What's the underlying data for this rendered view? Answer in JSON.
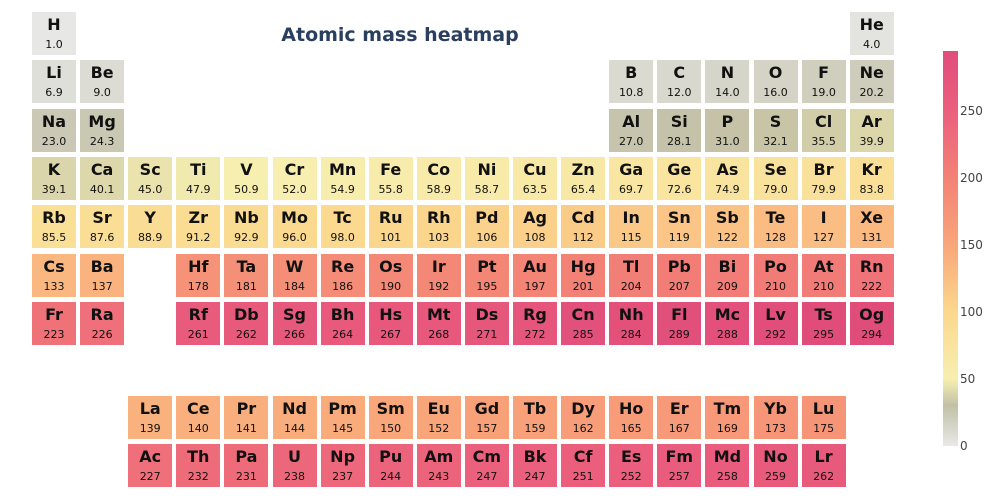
{
  "chart_data": {
    "type": "heatmap",
    "title": "Atomic mass heatmap",
    "colorscale": {
      "min": 0,
      "max": 295,
      "stops": [
        [
          0,
          "#e8e8e8"
        ],
        [
          30,
          "#c2c0a6"
        ],
        [
          50,
          "#f7efb0"
        ],
        [
          100,
          "#fbd88d"
        ],
        [
          150,
          "#f9a67a"
        ],
        [
          200,
          "#f38276"
        ],
        [
          250,
          "#eb5f7d"
        ],
        [
          295,
          "#e04d7b"
        ]
      ],
      "ticks": [
        "0",
        "50",
        "100",
        "150",
        "200",
        "250"
      ]
    },
    "elements": [
      {
        "symbol": "H",
        "mass": "1.0",
        "value": 1.0,
        "row": 1,
        "col": 1
      },
      {
        "symbol": "He",
        "mass": "4.0",
        "value": 4.0,
        "row": 1,
        "col": 18
      },
      {
        "symbol": "Li",
        "mass": "6.9",
        "value": 6.9,
        "row": 2,
        "col": 1
      },
      {
        "symbol": "Be",
        "mass": "9.0",
        "value": 9.0,
        "row": 2,
        "col": 2
      },
      {
        "symbol": "B",
        "mass": "10.8",
        "value": 10.8,
        "row": 2,
        "col": 13
      },
      {
        "symbol": "C",
        "mass": "12.0",
        "value": 12.0,
        "row": 2,
        "col": 14
      },
      {
        "symbol": "N",
        "mass": "14.0",
        "value": 14.0,
        "row": 2,
        "col": 15
      },
      {
        "symbol": "O",
        "mass": "16.0",
        "value": 16.0,
        "row": 2,
        "col": 16
      },
      {
        "symbol": "F",
        "mass": "19.0",
        "value": 19.0,
        "row": 2,
        "col": 17
      },
      {
        "symbol": "Ne",
        "mass": "20.2",
        "value": 20.2,
        "row": 2,
        "col": 18
      },
      {
        "symbol": "Na",
        "mass": "23.0",
        "value": 23.0,
        "row": 3,
        "col": 1
      },
      {
        "symbol": "Mg",
        "mass": "24.3",
        "value": 24.3,
        "row": 3,
        "col": 2
      },
      {
        "symbol": "Al",
        "mass": "27.0",
        "value": 27.0,
        "row": 3,
        "col": 13
      },
      {
        "symbol": "Si",
        "mass": "28.1",
        "value": 28.1,
        "row": 3,
        "col": 14
      },
      {
        "symbol": "P",
        "mass": "31.0",
        "value": 31.0,
        "row": 3,
        "col": 15
      },
      {
        "symbol": "S",
        "mass": "32.1",
        "value": 32.1,
        "row": 3,
        "col": 16
      },
      {
        "symbol": "Cl",
        "mass": "35.5",
        "value": 35.5,
        "row": 3,
        "col": 17
      },
      {
        "symbol": "Ar",
        "mass": "39.9",
        "value": 39.9,
        "row": 3,
        "col": 18
      },
      {
        "symbol": "K",
        "mass": "39.1",
        "value": 39.1,
        "row": 4,
        "col": 1
      },
      {
        "symbol": "Ca",
        "mass": "40.1",
        "value": 40.1,
        "row": 4,
        "col": 2
      },
      {
        "symbol": "Sc",
        "mass": "45.0",
        "value": 45.0,
        "row": 4,
        "col": 3
      },
      {
        "symbol": "Ti",
        "mass": "47.9",
        "value": 47.9,
        "row": 4,
        "col": 4
      },
      {
        "symbol": "V",
        "mass": "50.9",
        "value": 50.9,
        "row": 4,
        "col": 5
      },
      {
        "symbol": "Cr",
        "mass": "52.0",
        "value": 52.0,
        "row": 4,
        "col": 6
      },
      {
        "symbol": "Mn",
        "mass": "54.9",
        "value": 54.9,
        "row": 4,
        "col": 7
      },
      {
        "symbol": "Fe",
        "mass": "55.8",
        "value": 55.8,
        "row": 4,
        "col": 8
      },
      {
        "symbol": "Co",
        "mass": "58.9",
        "value": 58.9,
        "row": 4,
        "col": 9
      },
      {
        "symbol": "Ni",
        "mass": "58.7",
        "value": 58.7,
        "row": 4,
        "col": 10
      },
      {
        "symbol": "Cu",
        "mass": "63.5",
        "value": 63.5,
        "row": 4,
        "col": 11
      },
      {
        "symbol": "Zn",
        "mass": "65.4",
        "value": 65.4,
        "row": 4,
        "col": 12
      },
      {
        "symbol": "Ga",
        "mass": "69.7",
        "value": 69.7,
        "row": 4,
        "col": 13
      },
      {
        "symbol": "Ge",
        "mass": "72.6",
        "value": 72.6,
        "row": 4,
        "col": 14
      },
      {
        "symbol": "As",
        "mass": "74.9",
        "value": 74.9,
        "row": 4,
        "col": 15
      },
      {
        "symbol": "Se",
        "mass": "79.0",
        "value": 79.0,
        "row": 4,
        "col": 16
      },
      {
        "symbol": "Br",
        "mass": "79.9",
        "value": 79.9,
        "row": 4,
        "col": 17
      },
      {
        "symbol": "Kr",
        "mass": "83.8",
        "value": 83.8,
        "row": 4,
        "col": 18
      },
      {
        "symbol": "Rb",
        "mass": "85.5",
        "value": 85.5,
        "row": 5,
        "col": 1
      },
      {
        "symbol": "Sr",
        "mass": "87.6",
        "value": 87.6,
        "row": 5,
        "col": 2
      },
      {
        "symbol": "Y",
        "mass": "88.9",
        "value": 88.9,
        "row": 5,
        "col": 3
      },
      {
        "symbol": "Zr",
        "mass": "91.2",
        "value": 91.2,
        "row": 5,
        "col": 4
      },
      {
        "symbol": "Nb",
        "mass": "92.9",
        "value": 92.9,
        "row": 5,
        "col": 5
      },
      {
        "symbol": "Mo",
        "mass": "96.0",
        "value": 96.0,
        "row": 5,
        "col": 6
      },
      {
        "symbol": "Tc",
        "mass": "98.0",
        "value": 98.0,
        "row": 5,
        "col": 7
      },
      {
        "symbol": "Ru",
        "mass": "101",
        "value": 101,
        "row": 5,
        "col": 8
      },
      {
        "symbol": "Rh",
        "mass": "103",
        "value": 103,
        "row": 5,
        "col": 9
      },
      {
        "symbol": "Pd",
        "mass": "106",
        "value": 106,
        "row": 5,
        "col": 10
      },
      {
        "symbol": "Ag",
        "mass": "108",
        "value": 108,
        "row": 5,
        "col": 11
      },
      {
        "symbol": "Cd",
        "mass": "112",
        "value": 112,
        "row": 5,
        "col": 12
      },
      {
        "symbol": "In",
        "mass": "115",
        "value": 115,
        "row": 5,
        "col": 13
      },
      {
        "symbol": "Sn",
        "mass": "119",
        "value": 119,
        "row": 5,
        "col": 14
      },
      {
        "symbol": "Sb",
        "mass": "122",
        "value": 122,
        "row": 5,
        "col": 15
      },
      {
        "symbol": "Te",
        "mass": "128",
        "value": 128,
        "row": 5,
        "col": 16
      },
      {
        "symbol": "I",
        "mass": "127",
        "value": 127,
        "row": 5,
        "col": 17
      },
      {
        "symbol": "Xe",
        "mass": "131",
        "value": 131,
        "row": 5,
        "col": 18
      },
      {
        "symbol": "Cs",
        "mass": "133",
        "value": 133,
        "row": 6,
        "col": 1
      },
      {
        "symbol": "Ba",
        "mass": "137",
        "value": 137,
        "row": 6,
        "col": 2
      },
      {
        "symbol": "Hf",
        "mass": "178",
        "value": 178,
        "row": 6,
        "col": 4
      },
      {
        "symbol": "Ta",
        "mass": "181",
        "value": 181,
        "row": 6,
        "col": 5
      },
      {
        "symbol": "W",
        "mass": "184",
        "value": 184,
        "row": 6,
        "col": 6
      },
      {
        "symbol": "Re",
        "mass": "186",
        "value": 186,
        "row": 6,
        "col": 7
      },
      {
        "symbol": "Os",
        "mass": "190",
        "value": 190,
        "row": 6,
        "col": 8
      },
      {
        "symbol": "Ir",
        "mass": "192",
        "value": 192,
        "row": 6,
        "col": 9
      },
      {
        "symbol": "Pt",
        "mass": "195",
        "value": 195,
        "row": 6,
        "col": 10
      },
      {
        "symbol": "Au",
        "mass": "197",
        "value": 197,
        "row": 6,
        "col": 11
      },
      {
        "symbol": "Hg",
        "mass": "201",
        "value": 201,
        "row": 6,
        "col": 12
      },
      {
        "symbol": "Tl",
        "mass": "204",
        "value": 204,
        "row": 6,
        "col": 13
      },
      {
        "symbol": "Pb",
        "mass": "207",
        "value": 207,
        "row": 6,
        "col": 14
      },
      {
        "symbol": "Bi",
        "mass": "209",
        "value": 209,
        "row": 6,
        "col": 15
      },
      {
        "symbol": "Po",
        "mass": "210",
        "value": 210,
        "row": 6,
        "col": 16
      },
      {
        "symbol": "At",
        "mass": "210",
        "value": 210,
        "row": 6,
        "col": 17
      },
      {
        "symbol": "Rn",
        "mass": "222",
        "value": 222,
        "row": 6,
        "col": 18
      },
      {
        "symbol": "Fr",
        "mass": "223",
        "value": 223,
        "row": 7,
        "col": 1
      },
      {
        "symbol": "Ra",
        "mass": "226",
        "value": 226,
        "row": 7,
        "col": 2
      },
      {
        "symbol": "Rf",
        "mass": "261",
        "value": 261,
        "row": 7,
        "col": 4
      },
      {
        "symbol": "Db",
        "mass": "262",
        "value": 262,
        "row": 7,
        "col": 5
      },
      {
        "symbol": "Sg",
        "mass": "266",
        "value": 266,
        "row": 7,
        "col": 6
      },
      {
        "symbol": "Bh",
        "mass": "264",
        "value": 264,
        "row": 7,
        "col": 7
      },
      {
        "symbol": "Hs",
        "mass": "267",
        "value": 267,
        "row": 7,
        "col": 8
      },
      {
        "symbol": "Mt",
        "mass": "268",
        "value": 268,
        "row": 7,
        "col": 9
      },
      {
        "symbol": "Ds",
        "mass": "271",
        "value": 271,
        "row": 7,
        "col": 10
      },
      {
        "symbol": "Rg",
        "mass": "272",
        "value": 272,
        "row": 7,
        "col": 11
      },
      {
        "symbol": "Cn",
        "mass": "285",
        "value": 285,
        "row": 7,
        "col": 12
      },
      {
        "symbol": "Nh",
        "mass": "284",
        "value": 284,
        "row": 7,
        "col": 13
      },
      {
        "symbol": "Fl",
        "mass": "289",
        "value": 289,
        "row": 7,
        "col": 14
      },
      {
        "symbol": "Mc",
        "mass": "288",
        "value": 288,
        "row": 7,
        "col": 15
      },
      {
        "symbol": "Lv",
        "mass": "292",
        "value": 292,
        "row": 7,
        "col": 16
      },
      {
        "symbol": "Ts",
        "mass": "295",
        "value": 295,
        "row": 7,
        "col": 17
      },
      {
        "symbol": "Og",
        "mass": "294",
        "value": 294,
        "row": 7,
        "col": 18
      },
      {
        "symbol": "La",
        "mass": "139",
        "value": 139,
        "row": 9,
        "col": 3
      },
      {
        "symbol": "Ce",
        "mass": "140",
        "value": 140,
        "row": 9,
        "col": 4
      },
      {
        "symbol": "Pr",
        "mass": "141",
        "value": 141,
        "row": 9,
        "col": 5
      },
      {
        "symbol": "Nd",
        "mass": "144",
        "value": 144,
        "row": 9,
        "col": 6
      },
      {
        "symbol": "Pm",
        "mass": "145",
        "value": 145,
        "row": 9,
        "col": 7
      },
      {
        "symbol": "Sm",
        "mass": "150",
        "value": 150,
        "row": 9,
        "col": 8
      },
      {
        "symbol": "Eu",
        "mass": "152",
        "value": 152,
        "row": 9,
        "col": 9
      },
      {
        "symbol": "Gd",
        "mass": "157",
        "value": 157,
        "row": 9,
        "col": 10
      },
      {
        "symbol": "Tb",
        "mass": "159",
        "value": 159,
        "row": 9,
        "col": 11
      },
      {
        "symbol": "Dy",
        "mass": "162",
        "value": 162,
        "row": 9,
        "col": 12
      },
      {
        "symbol": "Ho",
        "mass": "165",
        "value": 165,
        "row": 9,
        "col": 13
      },
      {
        "symbol": "Er",
        "mass": "167",
        "value": 167,
        "row": 9,
        "col": 14
      },
      {
        "symbol": "Tm",
        "mass": "169",
        "value": 169,
        "row": 9,
        "col": 15
      },
      {
        "symbol": "Yb",
        "mass": "173",
        "value": 173,
        "row": 9,
        "col": 16
      },
      {
        "symbol": "Lu",
        "mass": "175",
        "value": 175,
        "row": 9,
        "col": 17
      },
      {
        "symbol": "Ac",
        "mass": "227",
        "value": 227,
        "row": 10,
        "col": 3
      },
      {
        "symbol": "Th",
        "mass": "232",
        "value": 232,
        "row": 10,
        "col": 4
      },
      {
        "symbol": "Pa",
        "mass": "231",
        "value": 231,
        "row": 10,
        "col": 5
      },
      {
        "symbol": "U",
        "mass": "238",
        "value": 238,
        "row": 10,
        "col": 6
      },
      {
        "symbol": "Np",
        "mass": "237",
        "value": 237,
        "row": 10,
        "col": 7
      },
      {
        "symbol": "Pu",
        "mass": "244",
        "value": 244,
        "row": 10,
        "col": 8
      },
      {
        "symbol": "Am",
        "mass": "243",
        "value": 243,
        "row": 10,
        "col": 9
      },
      {
        "symbol": "Cm",
        "mass": "247",
        "value": 247,
        "row": 10,
        "col": 10
      },
      {
        "symbol": "Bk",
        "mass": "247",
        "value": 247,
        "row": 10,
        "col": 11
      },
      {
        "symbol": "Cf",
        "mass": "251",
        "value": 251,
        "row": 10,
        "col": 12
      },
      {
        "symbol": "Es",
        "mass": "252",
        "value": 252,
        "row": 10,
        "col": 13
      },
      {
        "symbol": "Fm",
        "mass": "257",
        "value": 257,
        "row": 10,
        "col": 14
      },
      {
        "symbol": "Md",
        "mass": "258",
        "value": 258,
        "row": 10,
        "col": 15
      },
      {
        "symbol": "No",
        "mass": "259",
        "value": 259,
        "row": 10,
        "col": 16
      },
      {
        "symbol": "Lr",
        "mass": "262",
        "value": 262,
        "row": 10,
        "col": 17
      }
    ]
  }
}
